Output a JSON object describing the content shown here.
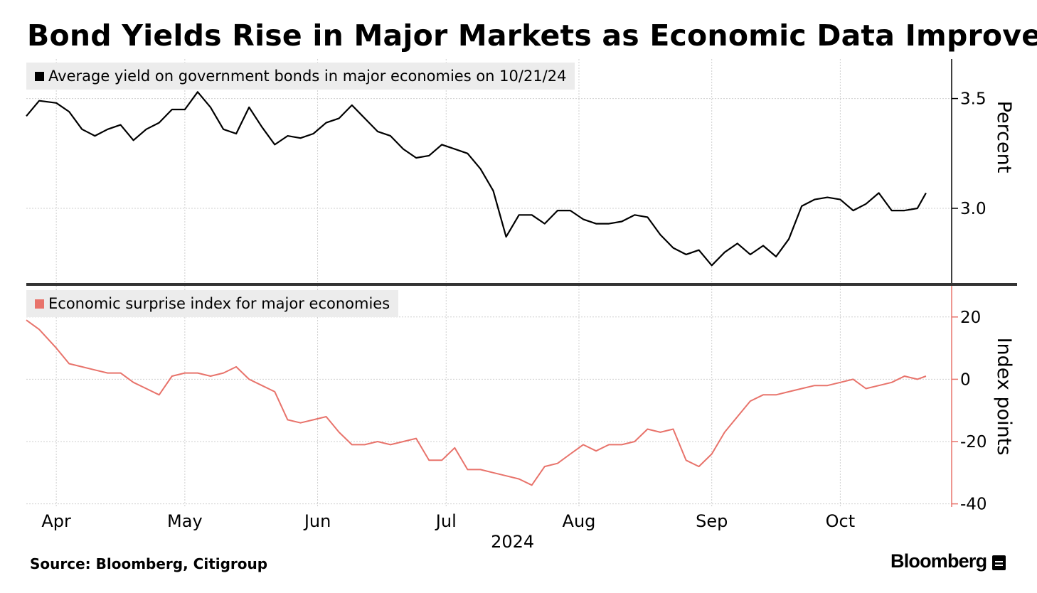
{
  "title": "Bond Yields Rise in Major Markets as Economic Data Improve",
  "source": "Source: Bloomberg, Citigroup",
  "brand": "Bloomberg",
  "colors": {
    "yield": "#000000",
    "surprise": "#e8736b",
    "grid": "#cfcfcf",
    "legend_bg": "#ececec"
  },
  "chart_data": [
    {
      "type": "line",
      "legend": "Average yield on government bonds in major economies on 10/21/24",
      "ylabel": "Percent",
      "yticks": [
        3.0,
        3.5
      ],
      "ylim": [
        2.66,
        3.68
      ],
      "x": [
        "2024-03-25",
        "2024-03-28",
        "2024-04-01",
        "2024-04-04",
        "2024-04-07",
        "2024-04-10",
        "2024-04-13",
        "2024-04-16",
        "2024-04-19",
        "2024-04-22",
        "2024-04-25",
        "2024-04-28",
        "2024-05-01",
        "2024-05-04",
        "2024-05-07",
        "2024-05-10",
        "2024-05-13",
        "2024-05-16",
        "2024-05-19",
        "2024-05-22",
        "2024-05-25",
        "2024-05-28",
        "2024-05-31",
        "2024-06-03",
        "2024-06-06",
        "2024-06-09",
        "2024-06-12",
        "2024-06-15",
        "2024-06-18",
        "2024-06-21",
        "2024-06-24",
        "2024-06-27",
        "2024-06-30",
        "2024-07-03",
        "2024-07-06",
        "2024-07-09",
        "2024-07-12",
        "2024-07-15",
        "2024-07-18",
        "2024-07-21",
        "2024-07-24",
        "2024-07-27",
        "2024-07-30",
        "2024-08-02",
        "2024-08-05",
        "2024-08-08",
        "2024-08-11",
        "2024-08-14",
        "2024-08-17",
        "2024-08-20",
        "2024-08-23",
        "2024-08-26",
        "2024-08-29",
        "2024-09-01",
        "2024-09-04",
        "2024-09-07",
        "2024-09-10",
        "2024-09-13",
        "2024-09-16",
        "2024-09-19",
        "2024-09-22",
        "2024-09-25",
        "2024-09-28",
        "2024-10-01",
        "2024-10-04",
        "2024-10-07",
        "2024-10-10",
        "2024-10-13",
        "2024-10-16",
        "2024-10-19",
        "2024-10-21"
      ],
      "y": [
        3.42,
        3.49,
        3.48,
        3.44,
        3.36,
        3.33,
        3.36,
        3.38,
        3.31,
        3.36,
        3.39,
        3.45,
        3.45,
        3.53,
        3.46,
        3.36,
        3.34,
        3.46,
        3.37,
        3.29,
        3.33,
        3.32,
        3.34,
        3.39,
        3.41,
        3.47,
        3.41,
        3.35,
        3.33,
        3.27,
        3.23,
        3.24,
        3.29,
        3.27,
        3.25,
        3.18,
        3.08,
        2.87,
        2.97,
        2.97,
        2.93,
        2.99,
        2.99,
        2.95,
        2.93,
        2.93,
        2.94,
        2.97,
        2.96,
        2.88,
        2.82,
        2.79,
        2.81,
        2.74,
        2.8,
        2.84,
        2.79,
        2.83,
        2.78,
        2.86,
        3.01,
        3.04,
        3.05,
        3.04,
        2.99,
        3.02,
        3.07,
        2.99,
        2.99,
        3.0,
        3.07
      ]
    },
    {
      "type": "line",
      "legend": "Economic surprise index for major economies",
      "ylabel": "Index points",
      "yticks": [
        -40,
        -20,
        0,
        20
      ],
      "ylim": [
        -41,
        30
      ],
      "x": [
        "2024-03-25",
        "2024-03-28",
        "2024-04-01",
        "2024-04-04",
        "2024-04-07",
        "2024-04-10",
        "2024-04-13",
        "2024-04-16",
        "2024-04-19",
        "2024-04-22",
        "2024-04-25",
        "2024-04-28",
        "2024-05-01",
        "2024-05-04",
        "2024-05-07",
        "2024-05-10",
        "2024-05-13",
        "2024-05-16",
        "2024-05-19",
        "2024-05-22",
        "2024-05-25",
        "2024-05-28",
        "2024-05-31",
        "2024-06-03",
        "2024-06-06",
        "2024-06-09",
        "2024-06-12",
        "2024-06-15",
        "2024-06-18",
        "2024-06-21",
        "2024-06-24",
        "2024-06-27",
        "2024-06-30",
        "2024-07-03",
        "2024-07-06",
        "2024-07-09",
        "2024-07-12",
        "2024-07-15",
        "2024-07-18",
        "2024-07-21",
        "2024-07-24",
        "2024-07-27",
        "2024-07-30",
        "2024-08-02",
        "2024-08-05",
        "2024-08-08",
        "2024-08-11",
        "2024-08-14",
        "2024-08-17",
        "2024-08-20",
        "2024-08-23",
        "2024-08-26",
        "2024-08-29",
        "2024-09-01",
        "2024-09-04",
        "2024-09-07",
        "2024-09-10",
        "2024-09-13",
        "2024-09-16",
        "2024-09-19",
        "2024-09-22",
        "2024-09-25",
        "2024-09-28",
        "2024-10-01",
        "2024-10-04",
        "2024-10-07",
        "2024-10-10",
        "2024-10-13",
        "2024-10-16",
        "2024-10-19",
        "2024-10-21"
      ],
      "y": [
        19,
        16,
        10,
        5,
        4,
        3,
        2,
        2,
        -1,
        -3,
        -5,
        1,
        2,
        2,
        1,
        2,
        4,
        0,
        -2,
        -4,
        -13,
        -14,
        -13,
        -12,
        -17,
        -21,
        -21,
        -20,
        -21,
        -20,
        -19,
        -26,
        -26,
        -22,
        -29,
        -29,
        -30,
        -31,
        -32,
        -34,
        -28,
        -27,
        -24,
        -21,
        -23,
        -21,
        -21,
        -20,
        -16,
        -17,
        -16,
        -26,
        -28,
        -24,
        -17,
        -12,
        -7,
        -5,
        -5,
        -4,
        -3,
        -2,
        -2,
        -1,
        0,
        -3,
        -2,
        -1,
        1,
        0,
        1
      ]
    }
  ],
  "x_axis": {
    "months": [
      {
        "label": "Apr",
        "date": "2024-04-01"
      },
      {
        "label": "May",
        "date": "2024-05-01"
      },
      {
        "label": "Jun",
        "date": "2024-06-01"
      },
      {
        "label": "Jul",
        "date": "2024-07-01"
      },
      {
        "label": "Aug",
        "date": "2024-08-01"
      },
      {
        "label": "Sep",
        "date": "2024-09-01"
      },
      {
        "label": "Oct",
        "date": "2024-10-01"
      }
    ],
    "year": "2024",
    "xlim": [
      "2024-03-25",
      "2024-10-27"
    ]
  }
}
